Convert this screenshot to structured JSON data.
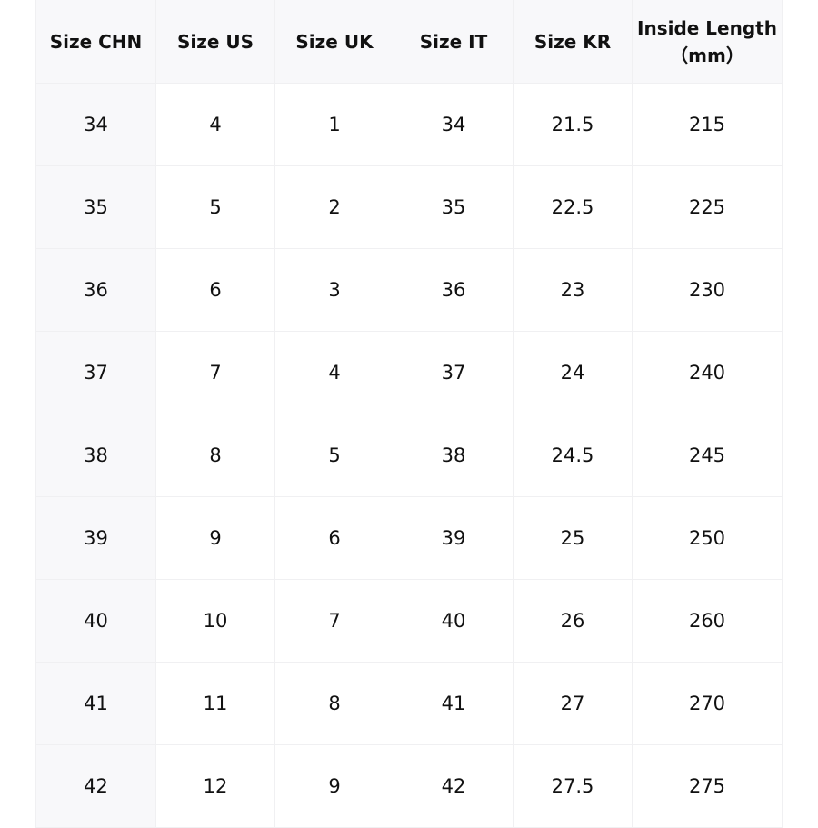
{
  "headers": [
    "Size CHN",
    "Size US",
    "Size UK",
    "Size IT",
    "Size KR",
    "Inside Length\n（mm）"
  ],
  "rows": [
    [
      "34",
      "4",
      "1",
      "34",
      "21.5",
      "215"
    ],
    [
      "35",
      "5",
      "2",
      "35",
      "22.5",
      "225"
    ],
    [
      "36",
      "6",
      "3",
      "36",
      "23",
      "230"
    ],
    [
      "37",
      "7",
      "4",
      "37",
      "24",
      "240"
    ],
    [
      "38",
      "8",
      "5",
      "38",
      "24.5",
      "245"
    ],
    [
      "39",
      "9",
      "6",
      "39",
      "25",
      "250"
    ],
    [
      "40",
      "10",
      "7",
      "40",
      "26",
      "260"
    ],
    [
      "41",
      "11",
      "8",
      "41",
      "27",
      "270"
    ],
    [
      "42",
      "12",
      "9",
      "42",
      "27.5",
      "275"
    ]
  ],
  "colors": {
    "header_bg": "#f8f8fa",
    "border": "#f0f0f2"
  }
}
